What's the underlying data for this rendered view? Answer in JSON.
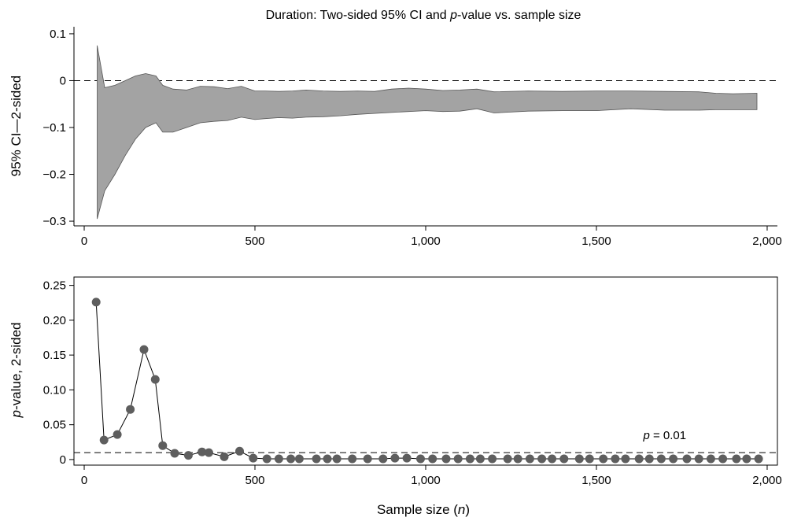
{
  "title": "Duration: Two-sided 95% CI and ",
  "title_italic": "p",
  "title_rest": "-value vs. sample size",
  "chart_data": [
    {
      "type": "area",
      "ylabel": "95% CI—2-sided",
      "xlabel": "",
      "xlim": [
        -30,
        2030
      ],
      "ylim": [
        -0.31,
        0.115
      ],
      "xticks": [
        0,
        500,
        1000,
        1500,
        2000
      ],
      "xtick_labels": [
        "0",
        "500",
        "1,000",
        "1,500",
        "2,000"
      ],
      "yticks": [
        0.1,
        0,
        -0.1,
        -0.2,
        -0.3
      ],
      "ytick_labels": [
        "0.1",
        "0",
        "−0.1",
        "−0.2",
        "−0.3"
      ],
      "reference_line": 0,
      "grid": false,
      "band_color": "#a3a3a3",
      "x": [
        38,
        60,
        90,
        120,
        150,
        180,
        210,
        230,
        260,
        300,
        340,
        380,
        420,
        460,
        500,
        530,
        570,
        610,
        650,
        700,
        750,
        800,
        850,
        900,
        950,
        1000,
        1050,
        1100,
        1150,
        1200,
        1300,
        1400,
        1500,
        1600,
        1700,
        1800,
        1850,
        1900,
        1970
      ],
      "upper": [
        0.075,
        -0.015,
        -0.01,
        0.0,
        0.01,
        0.015,
        0.01,
        -0.01,
        -0.018,
        -0.02,
        -0.012,
        -0.013,
        -0.017,
        -0.012,
        -0.022,
        -0.022,
        -0.023,
        -0.022,
        -0.02,
        -0.022,
        -0.023,
        -0.022,
        -0.023,
        -0.018,
        -0.016,
        -0.018,
        -0.021,
        -0.02,
        -0.018,
        -0.024,
        -0.022,
        -0.023,
        -0.022,
        -0.022,
        -0.023,
        -0.024,
        -0.027,
        -0.028,
        -0.027
      ],
      "lower": [
        -0.295,
        -0.235,
        -0.2,
        -0.16,
        -0.125,
        -0.1,
        -0.09,
        -0.11,
        -0.11,
        -0.1,
        -0.09,
        -0.087,
        -0.085,
        -0.078,
        -0.083,
        -0.081,
        -0.079,
        -0.08,
        -0.078,
        -0.077,
        -0.075,
        -0.072,
        -0.07,
        -0.068,
        -0.066,
        -0.064,
        -0.066,
        -0.065,
        -0.06,
        -0.069,
        -0.065,
        -0.064,
        -0.064,
        -0.06,
        -0.063,
        -0.063,
        -0.062,
        -0.062,
        -0.062
      ]
    },
    {
      "type": "scatter",
      "xlabel": "Sample size (",
      "xlabel_italic": "n",
      "xlabel_end": ")",
      "ylabel": "-value, 2-sided",
      "ylabel_italic": "p",
      "xlim": [
        -30,
        2030
      ],
      "ylim": [
        -0.008,
        0.262
      ],
      "xticks": [
        0,
        500,
        1000,
        1500,
        2000
      ],
      "xtick_labels": [
        "0",
        "500",
        "1,000",
        "1,500",
        "2,000"
      ],
      "yticks": [
        0,
        0.05,
        0.1,
        0.15,
        0.2,
        0.25
      ],
      "ytick_labels": [
        "0",
        "0.05",
        "0.10",
        "0.15",
        "0.20",
        "0.25"
      ],
      "reference_line": 0.01,
      "reference_label_italic": "p",
      "reference_label": " = 0.01",
      "grid": false,
      "marker_color": "#5e5e5e",
      "x": [
        35,
        58,
        97,
        135,
        175,
        208,
        230,
        265,
        305,
        345,
        365,
        410,
        455,
        495,
        535,
        570,
        605,
        630,
        680,
        712,
        740,
        785,
        830,
        875,
        910,
        945,
        985,
        1020,
        1060,
        1095,
        1130,
        1160,
        1195,
        1240,
        1270,
        1305,
        1340,
        1370,
        1405,
        1450,
        1480,
        1520,
        1555,
        1585,
        1625,
        1655,
        1690,
        1725,
        1765,
        1800,
        1835,
        1870,
        1910,
        1940,
        1975
      ],
      "values": [
        0.226,
        0.028,
        0.036,
        0.072,
        0.158,
        0.115,
        0.02,
        0.009,
        0.006,
        0.011,
        0.01,
        0.004,
        0.012,
        0.002,
        0.001,
        0.001,
        0.001,
        0.001,
        0.001,
        0.001,
        0.001,
        0.001,
        0.001,
        0.001,
        0.002,
        0.002,
        0.001,
        0.001,
        0.001,
        0.001,
        0.001,
        0.001,
        0.001,
        0.001,
        0.001,
        0.001,
        0.001,
        0.001,
        0.001,
        0.001,
        0.001,
        0.001,
        0.001,
        0.001,
        0.001,
        0.001,
        0.001,
        0.001,
        0.001,
        0.001,
        0.001,
        0.001,
        0.001,
        0.001,
        0.001
      ]
    }
  ]
}
